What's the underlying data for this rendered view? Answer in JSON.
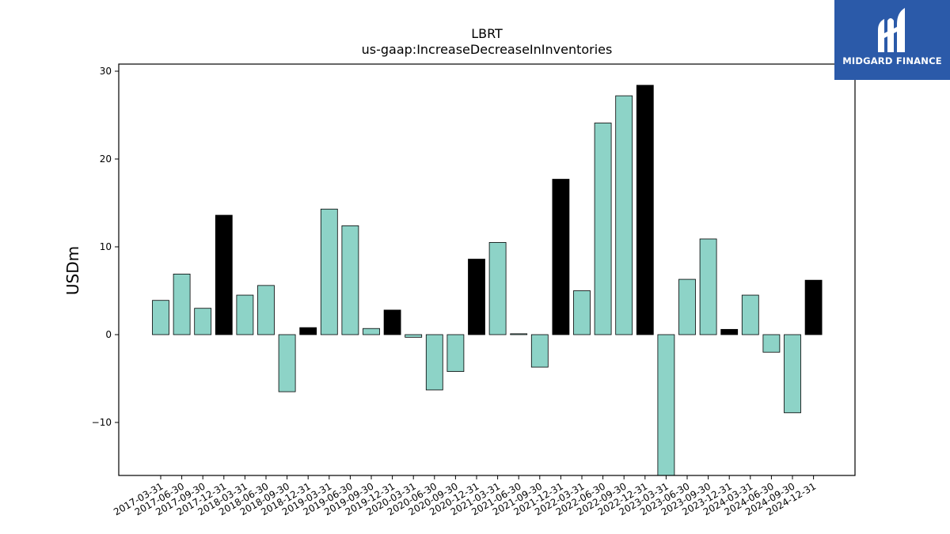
{
  "colors": {
    "regular": "#8dd3c7",
    "year_end": "#000000",
    "edge": "#000000",
    "logo_bg": "#2b5aa9"
  },
  "logo": {
    "text": "MIDGARD FINANCE",
    "icon": "midgard-logo-mark"
  },
  "chart_data": {
    "type": "bar",
    "title": "LBRT",
    "subtitle": "us-gaap:IncreaseDecreaseInInventories",
    "xlabel": "",
    "ylabel": "USDm",
    "ylim": [
      -16,
      31
    ],
    "yticks": [
      -10,
      0,
      10,
      20,
      30
    ],
    "ytick_labels": [
      "−10",
      "0",
      "10",
      "20",
      "30"
    ],
    "grid": false,
    "legend": "none",
    "categories": [
      "2017-03-31",
      "2017-06-30",
      "2017-09-30",
      "2017-12-31",
      "2018-03-31",
      "2018-06-30",
      "2018-09-30",
      "2018-12-31",
      "2019-03-31",
      "2019-06-30",
      "2019-09-30",
      "2019-12-31",
      "2020-03-31",
      "2020-06-30",
      "2020-09-30",
      "2020-12-31",
      "2021-03-31",
      "2021-06-30",
      "2021-09-30",
      "2021-12-31",
      "2022-03-31",
      "2022-06-30",
      "2022-09-30",
      "2022-12-31",
      "2023-03-31",
      "2023-06-30",
      "2023-09-30",
      "2023-12-31",
      "2024-03-31",
      "2024-06-30",
      "2024-09-30",
      "2024-12-31"
    ],
    "values": [
      3.9,
      6.9,
      3.0,
      13.6,
      4.5,
      5.6,
      -6.5,
      0.8,
      14.3,
      12.4,
      0.7,
      2.8,
      -0.3,
      -6.3,
      -4.2,
      8.6,
      10.5,
      0.1,
      -3.7,
      17.7,
      5.0,
      24.1,
      27.2,
      28.4,
      -16.5,
      6.3,
      10.9,
      0.6,
      4.5,
      -2.0,
      -8.9,
      6.2
    ],
    "year_end_highlight": true
  }
}
